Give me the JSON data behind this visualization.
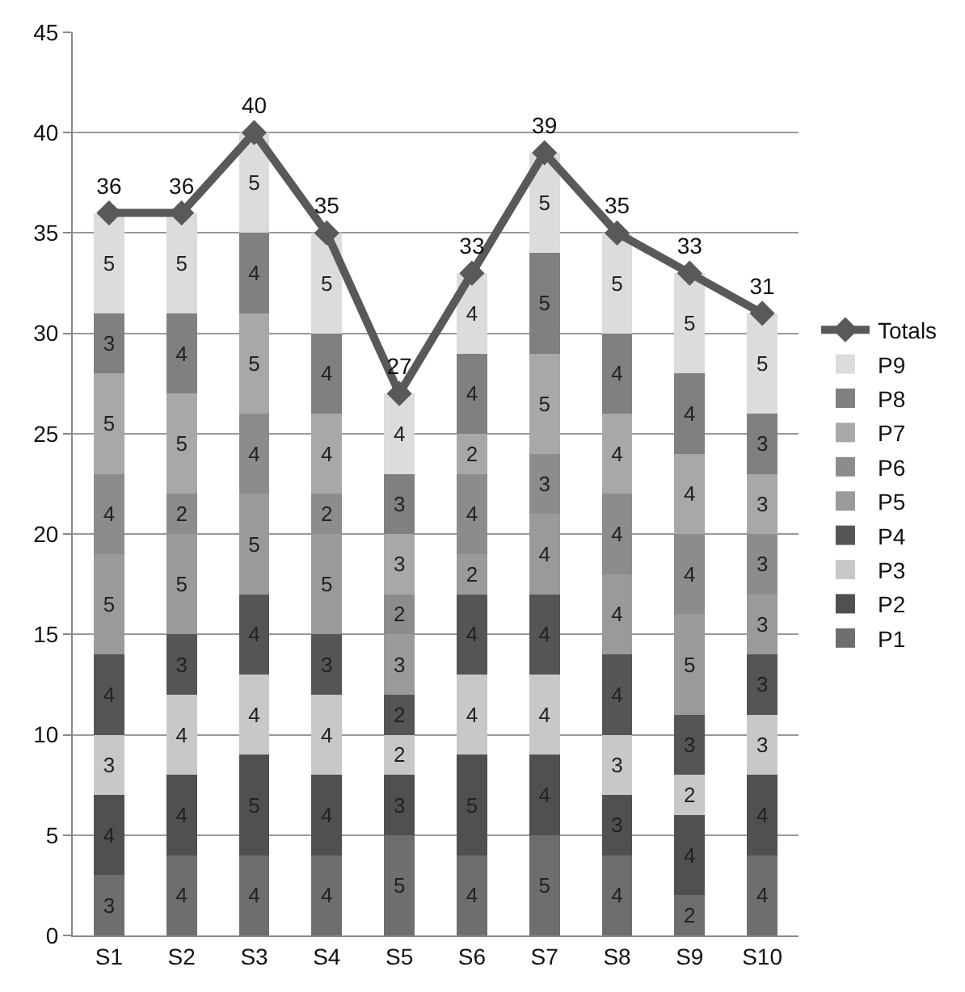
{
  "chart_data": {
    "type": "bar",
    "stacked": true,
    "categories": [
      "S1",
      "S2",
      "S3",
      "S4",
      "S5",
      "S6",
      "S7",
      "S8",
      "S9",
      "S10"
    ],
    "series": [
      {
        "name": "P1",
        "color": "#6e6e6e",
        "values": [
          3,
          4,
          4,
          4,
          5,
          4,
          5,
          4,
          2,
          4
        ]
      },
      {
        "name": "P2",
        "color": "#505050",
        "values": [
          4,
          4,
          5,
          4,
          3,
          5,
          4,
          3,
          4,
          4
        ]
      },
      {
        "name": "P3",
        "color": "#c8c8c8",
        "values": [
          3,
          4,
          4,
          4,
          2,
          4,
          4,
          3,
          2,
          3
        ]
      },
      {
        "name": "P4",
        "color": "#555555",
        "values": [
          4,
          3,
          4,
          3,
          2,
          4,
          4,
          4,
          3,
          3
        ]
      },
      {
        "name": "P5",
        "color": "#9a9a9a",
        "values": [
          5,
          5,
          5,
          5,
          3,
          2,
          4,
          4,
          5,
          3
        ]
      },
      {
        "name": "P6",
        "color": "#8c8c8c",
        "values": [
          4,
          2,
          4,
          2,
          2,
          4,
          3,
          4,
          4,
          3
        ]
      },
      {
        "name": "P7",
        "color": "#a8a8a8",
        "values": [
          5,
          5,
          5,
          4,
          3,
          2,
          5,
          4,
          4,
          3
        ]
      },
      {
        "name": "P8",
        "color": "#808080",
        "values": [
          3,
          4,
          4,
          4,
          3,
          4,
          5,
          4,
          4,
          3
        ]
      },
      {
        "name": "P9",
        "color": "#dcdcdc",
        "values": [
          5,
          5,
          5,
          5,
          4,
          4,
          5,
          5,
          5,
          5
        ]
      },
      {
        "name": "Totals",
        "type": "line",
        "color": "#595959",
        "marker": "diamond",
        "values": [
          36,
          36,
          40,
          35,
          27,
          33,
          39,
          35,
          33,
          31
        ]
      }
    ],
    "data_labels": true,
    "ylim": [
      0,
      45
    ],
    "yticks": [
      0,
      5,
      10,
      15,
      20,
      25,
      30,
      35,
      40,
      45
    ],
    "grid": "y",
    "legend": "right"
  }
}
